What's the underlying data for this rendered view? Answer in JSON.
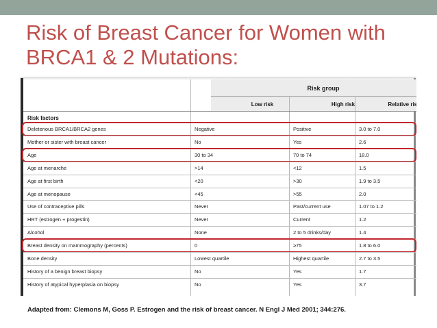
{
  "slide": {
    "title_line1": "Risk of Breast Cancer for Women with",
    "title_line2": "BRCA1 & 2 Mutations:",
    "citation": "Adapted from: Clemons M, Goss P. Estrogen and the risk of breast cancer. N Engl J Med 2001; 344:276.",
    "colors": {
      "title": "#c0504d",
      "top_bar": "#93a59a",
      "highlight": "#c0272d"
    }
  },
  "table": {
    "group_header": "Risk group",
    "columns": [
      "Low risk",
      "High risk",
      "Relative risk"
    ],
    "section_label": "Risk factors",
    "rows": [
      {
        "factor": "Deleterious BRCA1/BRCA2 genes",
        "low": "Negative",
        "high": "Positive",
        "relative": "3.0 to 7.0",
        "highlighted": true
      },
      {
        "factor": "Mother or sister with breast cancer",
        "low": "No",
        "high": "Yes",
        "relative": "2.6",
        "highlighted": false
      },
      {
        "factor": "Age",
        "low": "30 to 34",
        "high": "70 to 74",
        "relative": "18.0",
        "highlighted": true
      },
      {
        "factor": "Age at menarche",
        "low": ">14",
        "high": "<12",
        "relative": "1.5",
        "highlighted": false
      },
      {
        "factor": "Age at first birth",
        "low": "<20",
        "high": ">30",
        "relative": "1.9 to 3.5",
        "highlighted": false
      },
      {
        "factor": "Age at menopause",
        "low": "<45",
        "high": ">55",
        "relative": "2.0",
        "highlighted": false
      },
      {
        "factor": "Use of contraceptive pills",
        "low": "Never",
        "high": "Past/current use",
        "relative": "1.07 to 1.2",
        "highlighted": false
      },
      {
        "factor": "HRT (estrogen + progestin)",
        "low": "Never",
        "high": "Current",
        "relative": "1.2",
        "highlighted": false
      },
      {
        "factor": "Alcohol",
        "low": "None",
        "high": "2 to 5 drinks/day",
        "relative": "1.4",
        "highlighted": false
      },
      {
        "factor": "Breast density on mammography (percents)",
        "low": "0",
        "high": "≥75",
        "relative": "1.8 to 6.0",
        "highlighted": true
      },
      {
        "factor": "Bone density",
        "low": "Lowest quartile",
        "high": "Highest quartile",
        "relative": "2.7 to 3.5",
        "highlighted": false
      },
      {
        "factor": "History of a benign breast biopsy",
        "low": "No",
        "high": "Yes",
        "relative": "1.7",
        "highlighted": false
      },
      {
        "factor": "History of atypical hyperplasia on biopsy",
        "low": "No",
        "high": "Yes",
        "relative": "3.7",
        "highlighted": false
      }
    ]
  }
}
